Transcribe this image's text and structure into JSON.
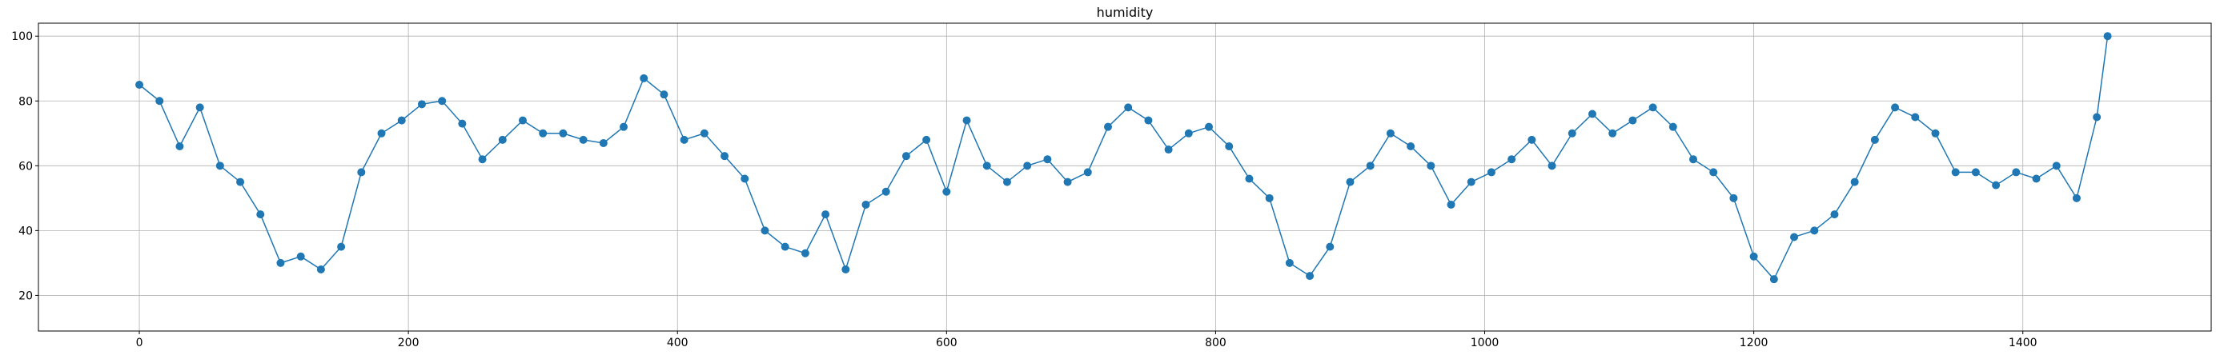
{
  "chart_data": {
    "type": "line",
    "title": "humidity",
    "xlabel": "",
    "ylabel": "",
    "xlim": [
      -75,
      1540
    ],
    "ylim": [
      9,
      104
    ],
    "grid": true,
    "marker": "circle",
    "color": "#1f77b4",
    "xticks": [
      0,
      200,
      400,
      600,
      800,
      1000,
      1200,
      1400
    ],
    "yticks": [
      20,
      40,
      60,
      80,
      100
    ],
    "series": [
      {
        "points": [
          [
            0,
            85
          ],
          [
            15,
            80
          ],
          [
            30,
            66
          ],
          [
            45,
            78
          ],
          [
            60,
            60
          ],
          [
            75,
            55
          ],
          [
            90,
            45
          ],
          [
            105,
            30
          ],
          [
            120,
            32
          ],
          [
            135,
            28
          ],
          [
            150,
            35
          ],
          [
            165,
            58
          ],
          [
            180,
            70
          ],
          [
            195,
            74
          ],
          [
            210,
            79
          ],
          [
            225,
            80
          ],
          [
            240,
            73
          ],
          [
            255,
            62
          ],
          [
            270,
            68
          ],
          [
            285,
            74
          ],
          [
            300,
            70
          ],
          [
            315,
            70
          ],
          [
            330,
            68
          ],
          [
            345,
            67
          ],
          [
            360,
            72
          ],
          [
            375,
            87
          ],
          [
            390,
            82
          ],
          [
            405,
            68
          ],
          [
            420,
            70
          ],
          [
            435,
            63
          ],
          [
            450,
            56
          ],
          [
            465,
            40
          ],
          [
            480,
            35
          ],
          [
            495,
            33
          ],
          [
            510,
            45
          ],
          [
            525,
            28
          ],
          [
            540,
            48
          ],
          [
            555,
            52
          ],
          [
            570,
            63
          ],
          [
            585,
            68
          ],
          [
            600,
            52
          ],
          [
            615,
            74
          ],
          [
            630,
            60
          ],
          [
            645,
            55
          ],
          [
            660,
            60
          ],
          [
            675,
            62
          ],
          [
            690,
            55
          ],
          [
            705,
            58
          ],
          [
            720,
            72
          ],
          [
            735,
            78
          ],
          [
            750,
            74
          ],
          [
            765,
            65
          ],
          [
            780,
            70
          ],
          [
            795,
            72
          ],
          [
            810,
            66
          ],
          [
            825,
            56
          ],
          [
            840,
            50
          ],
          [
            855,
            30
          ],
          [
            870,
            26
          ],
          [
            885,
            35
          ],
          [
            900,
            55
          ],
          [
            915,
            60
          ],
          [
            930,
            70
          ],
          [
            945,
            66
          ],
          [
            960,
            60
          ],
          [
            975,
            48
          ],
          [
            990,
            55
          ],
          [
            1005,
            58
          ],
          [
            1020,
            62
          ],
          [
            1035,
            68
          ],
          [
            1050,
            60
          ],
          [
            1065,
            70
          ],
          [
            1080,
            76
          ],
          [
            1095,
            70
          ],
          [
            1110,
            74
          ],
          [
            1125,
            78
          ],
          [
            1140,
            72
          ],
          [
            1155,
            62
          ],
          [
            1170,
            58
          ],
          [
            1185,
            50
          ],
          [
            1200,
            32
          ],
          [
            1215,
            25
          ],
          [
            1230,
            38
          ],
          [
            1245,
            40
          ],
          [
            1260,
            45
          ],
          [
            1275,
            55
          ],
          [
            1290,
            68
          ],
          [
            1305,
            78
          ],
          [
            1320,
            75
          ],
          [
            1335,
            70
          ],
          [
            1350,
            58
          ],
          [
            1365,
            58
          ],
          [
            1380,
            54
          ],
          [
            1395,
            58
          ],
          [
            1410,
            56
          ],
          [
            1425,
            60
          ],
          [
            1440,
            50
          ],
          [
            1455,
            75
          ],
          [
            1463,
            100
          ]
        ]
      }
    ]
  }
}
